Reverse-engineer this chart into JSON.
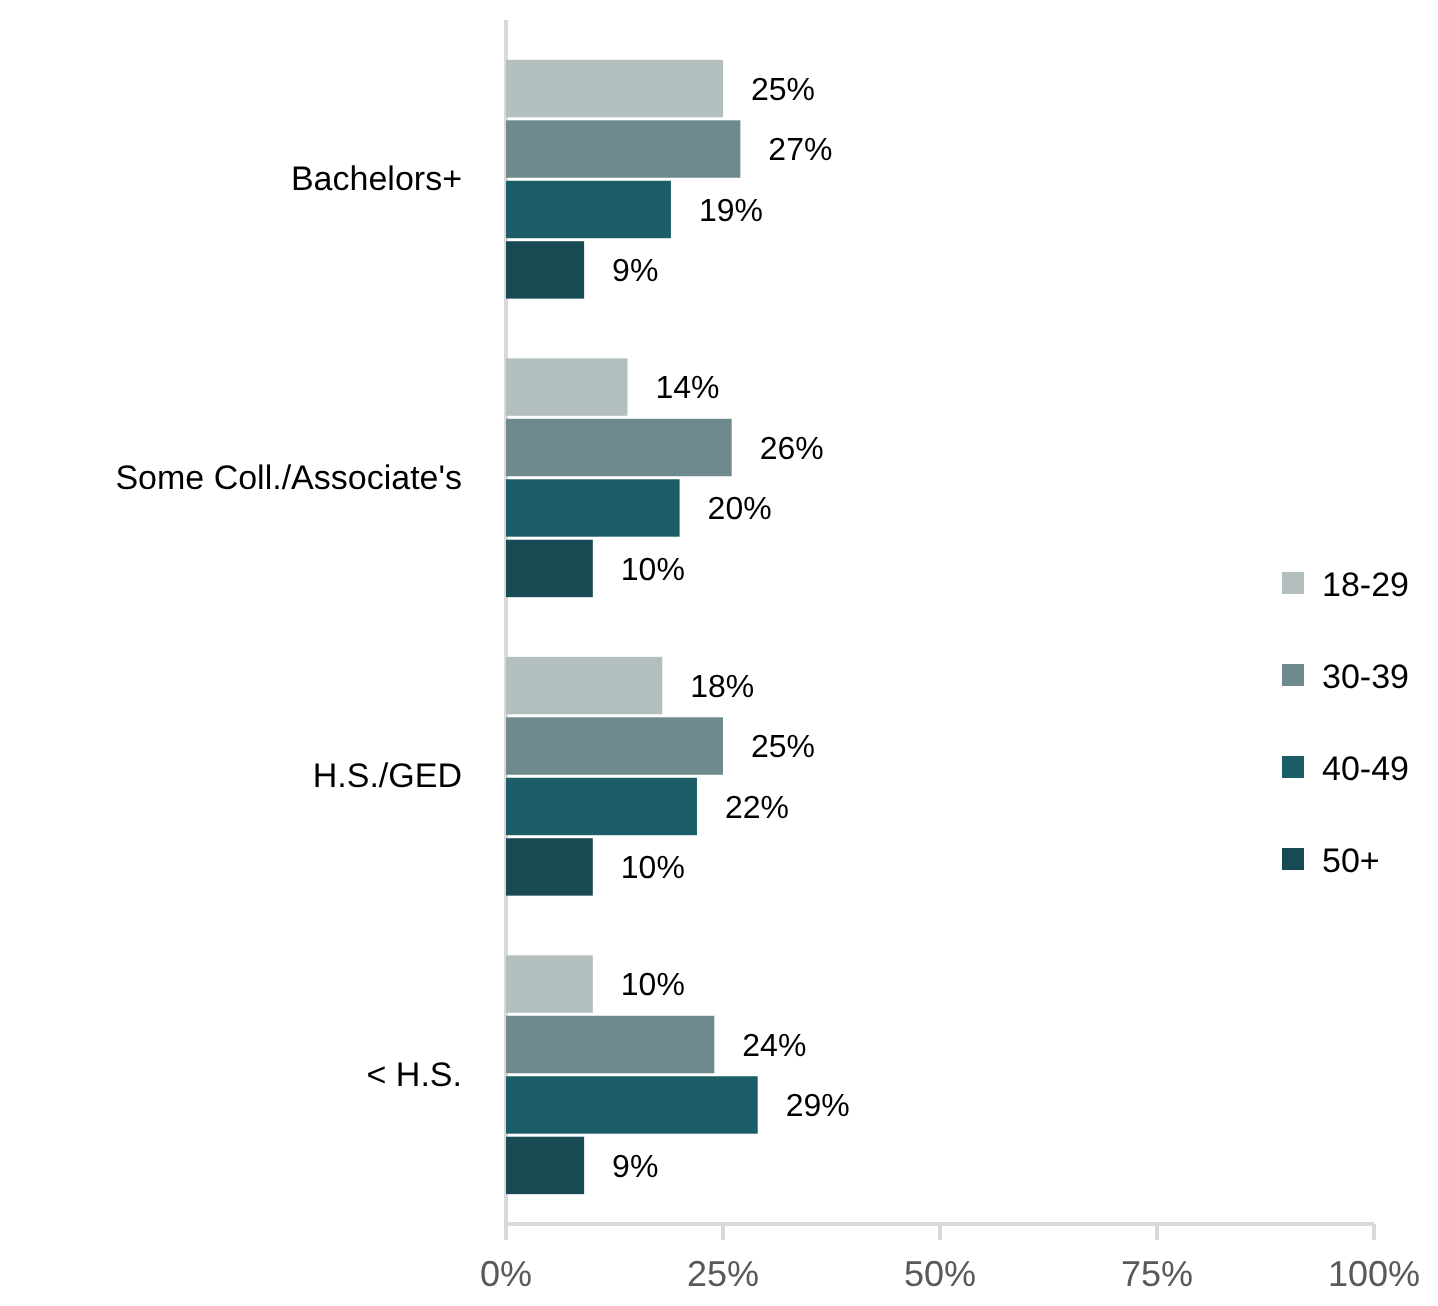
{
  "chart_data": {
    "type": "bar",
    "orientation": "horizontal",
    "categories": [
      "Bachelors+",
      "Some Coll./Associate's",
      "H.S./GED",
      "< H.S."
    ],
    "series": [
      {
        "name": "18-29",
        "color": "#b3bfbf",
        "values": [
          25,
          14,
          18,
          10
        ],
        "value_labels": [
          "25%",
          "14%",
          "18%",
          "10%"
        ]
      },
      {
        "name": "30-39",
        "color": "#6e8a8e",
        "values": [
          27,
          26,
          25,
          24
        ],
        "value_labels": [
          "27%",
          "26%",
          "25%",
          "24%"
        ]
      },
      {
        "name": "40-49",
        "color": "#1b5e68",
        "values": [
          19,
          20,
          22,
          29
        ],
        "value_labels": [
          "19%",
          "20%",
          "22%",
          "29%"
        ]
      },
      {
        "name": "50+",
        "color": "#174a52",
        "values": [
          9,
          10,
          10,
          9
        ],
        "value_labels": [
          "9%",
          "10%",
          "10%",
          "9%"
        ]
      }
    ],
    "xlim": [
      0,
      100
    ],
    "xticks": [
      {
        "value": 0,
        "label": "0%"
      },
      {
        "value": 25,
        "label": "25%"
      },
      {
        "value": 50,
        "label": "50%"
      },
      {
        "value": 75,
        "label": "75%"
      },
      {
        "value": 100,
        "label": "100%"
      }
    ],
    "legend": "right"
  }
}
